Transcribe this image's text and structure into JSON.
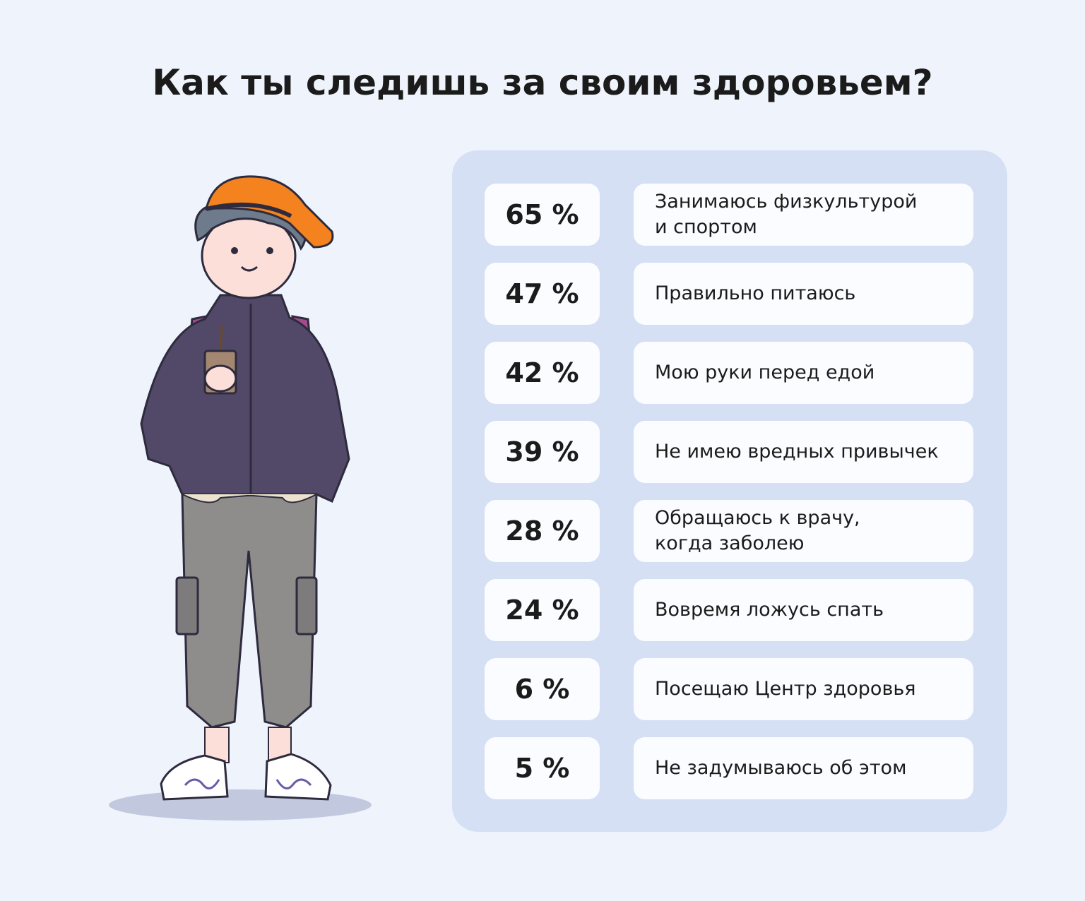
{
  "title": "Как ты следишь за своим здоровьем?",
  "chart_data": {
    "type": "table",
    "title": "Как ты следишь за своим здоровьем?",
    "unit": "%",
    "rows": [
      {
        "percent": 65,
        "percent_label": "65 %",
        "label": "Занимаюсь физкультурой\nи спортом"
      },
      {
        "percent": 47,
        "percent_label": "47 %",
        "label": "Правильно питаюсь"
      },
      {
        "percent": 42,
        "percent_label": "42 %",
        "label": "Мою руки перед едой"
      },
      {
        "percent": 39,
        "percent_label": "39 %",
        "label": "Не имею вредных привычек"
      },
      {
        "percent": 28,
        "percent_label": "28 %",
        "label": "Обращаюсь к врачу,\nкогда заболею"
      },
      {
        "percent": 24,
        "percent_label": "24 %",
        "label": "Вовремя ложусь спать"
      },
      {
        "percent": 6,
        "percent_label": "6 %",
        "label": "Посещаю Центр здоровья"
      },
      {
        "percent": 5,
        "percent_label": "5 %",
        "label": "Не задумываюсь об этом"
      }
    ]
  },
  "colors": {
    "background": "#eff4fc",
    "panel": "#d5e0f4",
    "card": "#fafcff",
    "text": "#1b1b1b",
    "cap": "#f4821f",
    "jacket": "#524868",
    "pants": "#8f8c8c",
    "backpack_strap": "#a24a8c"
  }
}
